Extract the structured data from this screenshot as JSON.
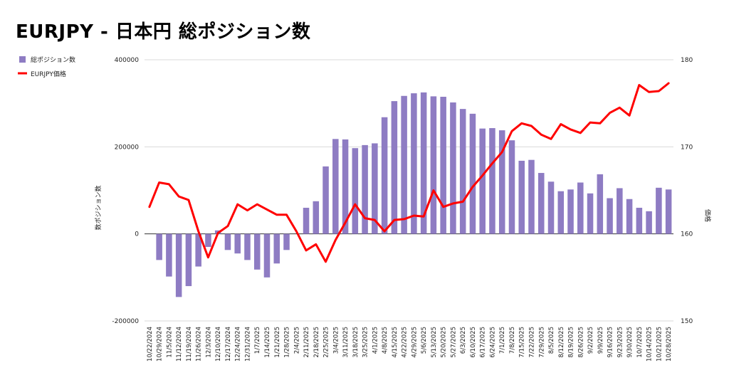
{
  "title": "EURJPY - 日本円 総ポジション数",
  "chart_data": {
    "type": "bar+line",
    "categories": [
      "10/22/2024",
      "10/29/2024",
      "11/5/2024",
      "11/12/2024",
      "11/19/2024",
      "11/26/2024",
      "12/3/2024",
      "12/10/2024",
      "12/17/2024",
      "12/24/2024",
      "12/31/2024",
      "1/7/2025",
      "1/14/2025",
      "1/21/2025",
      "1/28/2025",
      "2/4/2025",
      "2/11/2025",
      "2/18/2025",
      "2/25/2025",
      "3/4/2025",
      "3/11/2025",
      "3/18/2025",
      "3/25/2025",
      "4/1/2025",
      "4/8/2025",
      "4/15/2025",
      "4/22/2025",
      "4/29/2025",
      "5/6/2025",
      "5/13/2025",
      "5/20/2025",
      "5/27/2025",
      "6/3/2025",
      "6/10/2025",
      "6/17/2025",
      "6/24/2025",
      "7/1/2025",
      "7/8/2025",
      "7/15/2025",
      "7/22/2025",
      "7/29/2025",
      "8/5/2025",
      "8/12/2025",
      "8/19/2025",
      "8/26/2025",
      "9/2/2025",
      "9/9/2025",
      "9/16/2025",
      "9/23/2025",
      "9/30/2025",
      "10/7/2025",
      "10/14/2025",
      "10/21/2025",
      "10/28/2025"
    ],
    "series": [
      {
        "name": "総ポジション数",
        "type": "bar",
        "axis": "left",
        "color": "#8e7cc3",
        "values": [
          null,
          -60000,
          -98000,
          -145000,
          -120000,
          -75000,
          -30000,
          8000,
          -37000,
          -45000,
          -60000,
          -82000,
          -100000,
          -68000,
          -37000,
          0,
          60000,
          75000,
          155000,
          218000,
          217000,
          197000,
          204000,
          208000,
          268000,
          305000,
          317000,
          323000,
          325000,
          316000,
          315000,
          302000,
          287000,
          276000,
          242000,
          243000,
          238000,
          215000,
          168000,
          170000,
          140000,
          120000,
          98000,
          102000,
          118000,
          93000,
          137000,
          82000,
          105000,
          80000,
          60000,
          52000,
          106000,
          102000
        ]
      },
      {
        "name": "EURJPY価格",
        "type": "line",
        "axis": "right",
        "color": "#ff0000",
        "values": [
          163.1,
          165.9,
          165.7,
          164.3,
          163.9,
          160.3,
          157.3,
          160.1,
          160.9,
          163.4,
          162.7,
          163.4,
          162.8,
          162.2,
          162.2,
          160.3,
          158.1,
          158.8,
          156.8,
          159.3,
          161.3,
          163.4,
          161.8,
          161.6,
          160.3,
          161.6,
          161.7,
          162.1,
          162.0,
          165.0,
          163.1,
          163.5,
          163.7,
          165.4,
          166.7,
          168.1,
          169.4,
          171.8,
          172.7,
          172.4,
          171.4,
          170.9,
          172.6,
          172.0,
          171.6,
          172.8,
          172.7,
          173.9,
          174.5,
          173.6,
          177.1,
          176.3,
          176.4,
          177.3
        ]
      }
    ],
    "y_left": {
      "min": -200000,
      "max": 400000,
      "ticks": [
        "400000",
        "200000",
        "0",
        "-200000"
      ],
      "label": "数ポジション数"
    },
    "y_right": {
      "min": 150,
      "max": 180,
      "ticks": [
        "180",
        "170",
        "160",
        "150"
      ],
      "label": "価格"
    },
    "legend": {
      "placement": "top-left",
      "entries": [
        "総ポジション数",
        "EURJPY価格"
      ]
    },
    "grid": true
  }
}
